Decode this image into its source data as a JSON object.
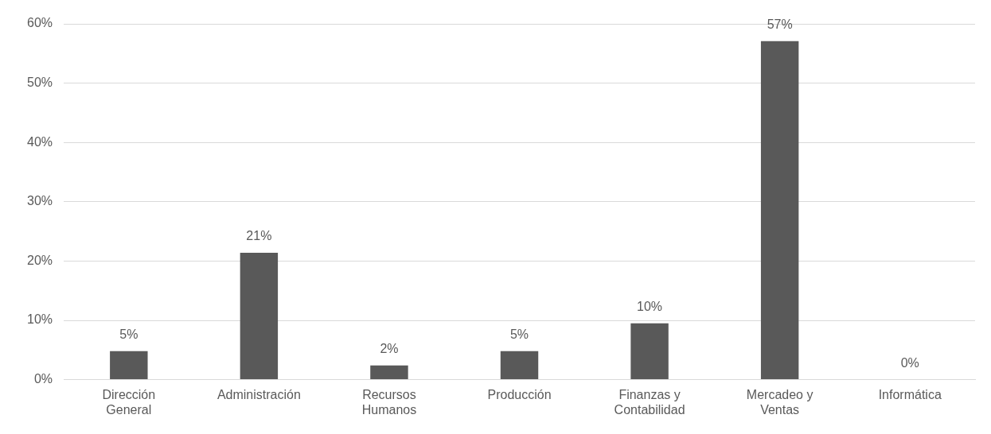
{
  "chart_data": {
    "type": "bar",
    "categories": [
      "Dirección General",
      "Administración",
      "Recursos Humanos",
      "Producción",
      "Finanzas y Contabilidad",
      "Mercadeo y Ventas",
      "Informática"
    ],
    "values": [
      4.8,
      21.4,
      2.4,
      4.8,
      9.5,
      57.1,
      0
    ],
    "value_labels": [
      "5%",
      "21%",
      "2%",
      "5%",
      "10%",
      "57%",
      "0%"
    ],
    "color": "#595959",
    "ylim": [
      0,
      60
    ],
    "yticks": [
      {
        "value": 0,
        "label": "0%"
      },
      {
        "value": 10,
        "label": "10%"
      },
      {
        "value": 20,
        "label": "20%"
      },
      {
        "value": 30,
        "label": "30%"
      },
      {
        "value": 40,
        "label": "40%"
      },
      {
        "value": 50,
        "label": "50%"
      },
      {
        "value": 60,
        "label": "60%"
      }
    ],
    "grid": "y",
    "legend": false
  }
}
